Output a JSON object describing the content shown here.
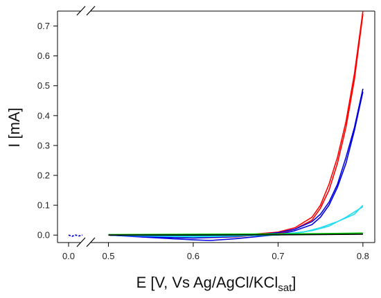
{
  "chart_data": {
    "type": "line",
    "xlabel": "E [V, Vs Ag/AgCl/KCl",
    "xlabel_subscript": "sat",
    "xlabel_suffix": "]",
    "ylabel": "I [mA]",
    "x_axis_break": "between 0.0 and 0.5",
    "xlim": [
      0.48,
      0.805
    ],
    "ylim": [
      -0.025,
      0.75
    ],
    "xticks": [
      "0.0",
      "0.5",
      "0.6",
      "0.7",
      "0.8"
    ],
    "xtick_values": [
      0.0,
      0.5,
      0.6,
      0.7,
      0.8
    ],
    "yticks": [
      "0.0",
      "0.1",
      "0.2",
      "0.3",
      "0.4",
      "0.5",
      "0.6",
      "0.7"
    ],
    "ytick_values": [
      0.0,
      0.1,
      0.2,
      0.3,
      0.4,
      0.5,
      0.6,
      0.7
    ],
    "grid": false,
    "legend": "none",
    "series": [
      {
        "color": "#ff0000",
        "segments": [
          [
            [
              0.5,
              0.0
            ],
            [
              0.55,
              -0.004
            ],
            [
              0.6,
              -0.006
            ],
            [
              0.65,
              -0.002
            ],
            [
              0.7,
              0.01
            ],
            [
              0.72,
              0.025
            ],
            [
              0.74,
              0.06
            ],
            [
              0.75,
              0.1
            ],
            [
              0.76,
              0.17
            ],
            [
              0.77,
              0.26
            ],
            [
              0.78,
              0.38
            ],
            [
              0.79,
              0.54
            ],
            [
              0.8,
              0.75
            ]
          ],
          [
            [
              0.8,
              0.74
            ],
            [
              0.79,
              0.52
            ],
            [
              0.78,
              0.36
            ],
            [
              0.77,
              0.24
            ],
            [
              0.76,
              0.15
            ],
            [
              0.75,
              0.09
            ],
            [
              0.74,
              0.05
            ],
            [
              0.72,
              0.02
            ],
            [
              0.7,
              0.005
            ],
            [
              0.65,
              -0.006
            ],
            [
              0.6,
              -0.01
            ],
            [
              0.55,
              -0.006
            ],
            [
              0.5,
              0.0
            ]
          ]
        ]
      },
      {
        "color": "#0000e0",
        "segments": [
          [
            [
              0.5,
              0.0
            ],
            [
              0.55,
              -0.006
            ],
            [
              0.6,
              -0.01
            ],
            [
              0.65,
              -0.005
            ],
            [
              0.7,
              0.008
            ],
            [
              0.72,
              0.02
            ],
            [
              0.74,
              0.045
            ],
            [
              0.75,
              0.07
            ],
            [
              0.76,
              0.11
            ],
            [
              0.77,
              0.17
            ],
            [
              0.78,
              0.26
            ],
            [
              0.79,
              0.36
            ],
            [
              0.8,
              0.49
            ]
          ],
          [
            [
              0.8,
              0.48
            ],
            [
              0.79,
              0.35
            ],
            [
              0.78,
              0.24
            ],
            [
              0.77,
              0.16
            ],
            [
              0.76,
              0.1
            ],
            [
              0.75,
              0.06
            ],
            [
              0.74,
              0.035
            ],
            [
              0.72,
              0.015
            ],
            [
              0.7,
              0.002
            ],
            [
              0.65,
              -0.012
            ],
            [
              0.62,
              -0.018
            ],
            [
              0.6,
              -0.016
            ],
            [
              0.55,
              -0.008
            ],
            [
              0.5,
              0.0
            ]
          ]
        ],
        "near_zero": [
          [
            0.0,
            0.0
          ],
          [
            0.006,
            -0.004
          ],
          [
            0.012,
            0.0
          ],
          [
            0.018,
            -0.003
          ],
          [
            0.024,
            0.0
          ]
        ]
      },
      {
        "color": "#22ddee",
        "segments": [
          [
            [
              0.5,
              0.0
            ],
            [
              0.6,
              -0.003
            ],
            [
              0.7,
              0.003
            ],
            [
              0.73,
              0.01
            ],
            [
              0.75,
              0.025
            ],
            [
              0.77,
              0.045
            ],
            [
              0.79,
              0.07
            ],
            [
              0.8,
              0.1
            ]
          ],
          [
            [
              0.8,
              0.095
            ],
            [
              0.78,
              0.06
            ],
            [
              0.76,
              0.03
            ],
            [
              0.74,
              0.015
            ],
            [
              0.72,
              0.007
            ],
            [
              0.7,
              0.0
            ],
            [
              0.6,
              -0.006
            ],
            [
              0.5,
              0.0
            ]
          ]
        ]
      },
      {
        "color": "#00cc00",
        "segments": [
          [
            [
              0.5,
              0.002
            ],
            [
              0.6,
              0.003
            ],
            [
              0.7,
              0.004
            ],
            [
              0.75,
              0.005
            ],
            [
              0.8,
              0.007
            ]
          ],
          [
            [
              0.8,
              0.004
            ],
            [
              0.75,
              0.003
            ],
            [
              0.7,
              0.002
            ],
            [
              0.6,
              0.001
            ],
            [
              0.5,
              0.0
            ]
          ]
        ]
      },
      {
        "color": "#000000",
        "segments": [
          [
            [
              0.5,
              0.0
            ],
            [
              0.6,
              0.0
            ],
            [
              0.7,
              0.001
            ],
            [
              0.75,
              0.002
            ],
            [
              0.8,
              0.003
            ]
          ]
        ]
      }
    ]
  }
}
